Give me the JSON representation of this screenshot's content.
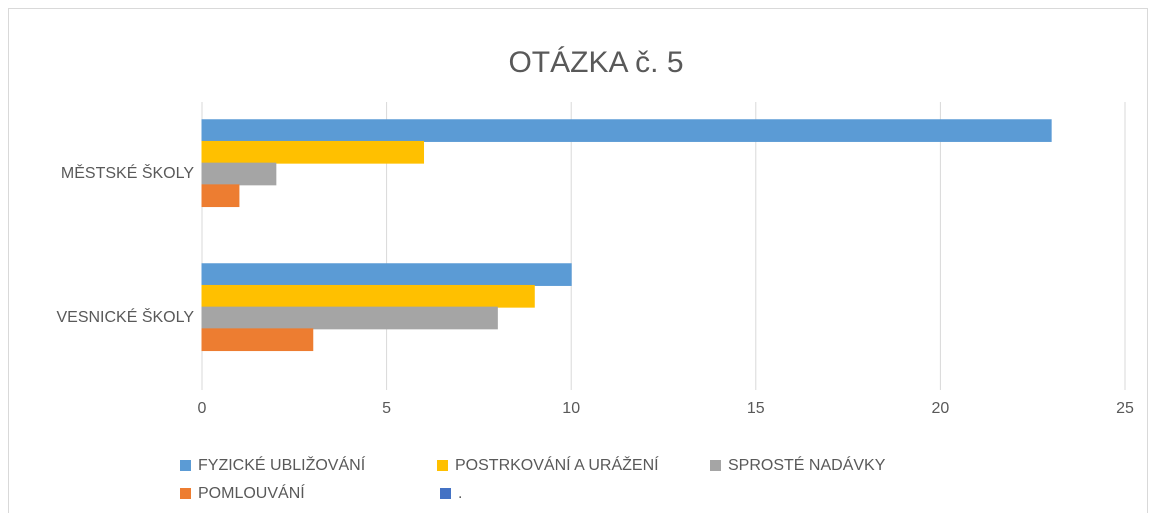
{
  "chart_data": {
    "type": "bar",
    "orientation": "horizontal",
    "title": "OTÁZKA č. 5",
    "categories": [
      "MĚSTSKÉ ŠKOLY",
      "VESNICKÉ ŠKOLY"
    ],
    "series": [
      {
        "name": "FYZICKÉ UBLIŽOVÁNÍ",
        "color": "#5b9bd5",
        "values": [
          23,
          10
        ]
      },
      {
        "name": "POSTRKOVÁNÍ A URÁŽENÍ",
        "color": "#ffc000",
        "values": [
          6,
          9
        ]
      },
      {
        "name": "SPROSTÉ NADÁVKY",
        "color": "#a5a5a5",
        "values": [
          2,
          8
        ]
      },
      {
        "name": "POMLOUVÁNÍ",
        "color": "#ed7d31",
        "values": [
          1,
          3
        ]
      },
      {
        "name": ".",
        "color": "#4472c4",
        "values": [
          0,
          0
        ]
      }
    ],
    "xlim": [
      0,
      25
    ],
    "xticks": [
      0,
      5,
      10,
      15,
      20,
      25
    ],
    "grid": true,
    "legend": "bottom"
  }
}
